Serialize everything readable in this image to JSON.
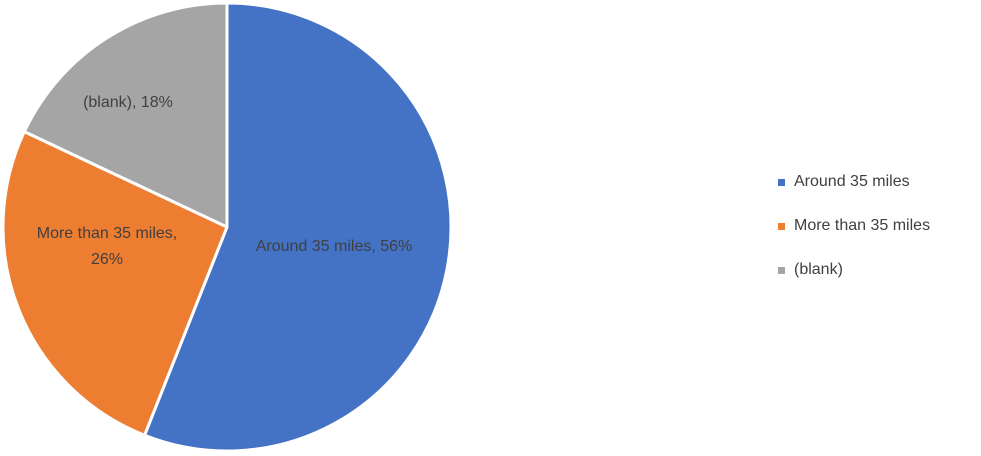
{
  "chart_data": {
    "type": "pie",
    "slices": [
      {
        "category": "Around 35 miles",
        "value": 56,
        "display": "56%",
        "label_lines": [
          "Around 35 miles, 56%"
        ],
        "color": "#4472C4"
      },
      {
        "category": "More than 35 miles",
        "value": 26,
        "display": "26%",
        "label_lines": [
          "More than 35 miles,",
          "26%"
        ],
        "color": "#ED7D31"
      },
      {
        "category": "(blank)",
        "value": 18,
        "display": "18%",
        "label_lines": [
          "(blank), 18%"
        ],
        "color": "#A5A5A5"
      }
    ],
    "start": "12 o'clock",
    "direction": "clockwise",
    "legend": {
      "position": "right",
      "entries": [
        "Around 35 miles",
        "More than 35 miles",
        "(blank)"
      ]
    }
  }
}
